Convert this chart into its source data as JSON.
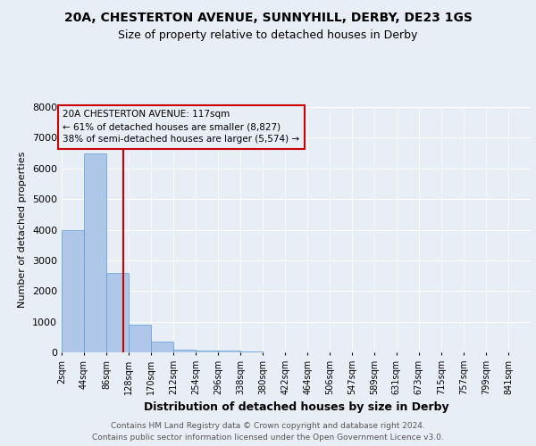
{
  "title": "20A, CHESTERTON AVENUE, SUNNYHILL, DERBY, DE23 1GS",
  "subtitle": "Size of property relative to detached houses in Derby",
  "xlabel": "Distribution of detached houses by size in Derby",
  "ylabel": "Number of detached properties",
  "bin_labels": [
    "2sqm",
    "44sqm",
    "86sqm",
    "128sqm",
    "170sqm",
    "212sqm",
    "254sqm",
    "296sqm",
    "338sqm",
    "380sqm",
    "422sqm",
    "464sqm",
    "506sqm",
    "547sqm",
    "589sqm",
    "631sqm",
    "673sqm",
    "715sqm",
    "757sqm",
    "799sqm",
    "841sqm"
  ],
  "bin_edges": [
    2,
    44,
    86,
    128,
    170,
    212,
    254,
    296,
    338,
    380,
    422,
    464,
    506,
    547,
    589,
    631,
    673,
    715,
    757,
    799,
    841
  ],
  "bar_values": [
    4000,
    6500,
    2600,
    900,
    350,
    100,
    50,
    50,
    30,
    10,
    5,
    3,
    2,
    1,
    1,
    0,
    0,
    0,
    0,
    0
  ],
  "bar_color": "#aec6e8",
  "bar_edge_color": "#5b9bd5",
  "property_size": 117,
  "vline_color": "#cc0000",
  "annotation_line1": "20A CHESTERTON AVENUE: 117sqm",
  "annotation_line2": "← 61% of detached houses are smaller (8,827)",
  "annotation_line3": "38% of semi-detached houses are larger (5,574) →",
  "annotation_box_color": "#cc0000",
  "ylim": [
    0,
    8000
  ],
  "yticks": [
    0,
    1000,
    2000,
    3000,
    4000,
    5000,
    6000,
    7000,
    8000
  ],
  "background_color": "#e8eef5",
  "grid_color": "#ffffff",
  "footer_line1": "Contains HM Land Registry data © Crown copyright and database right 2024.",
  "footer_line2": "Contains public sector information licensed under the Open Government Licence v3.0."
}
